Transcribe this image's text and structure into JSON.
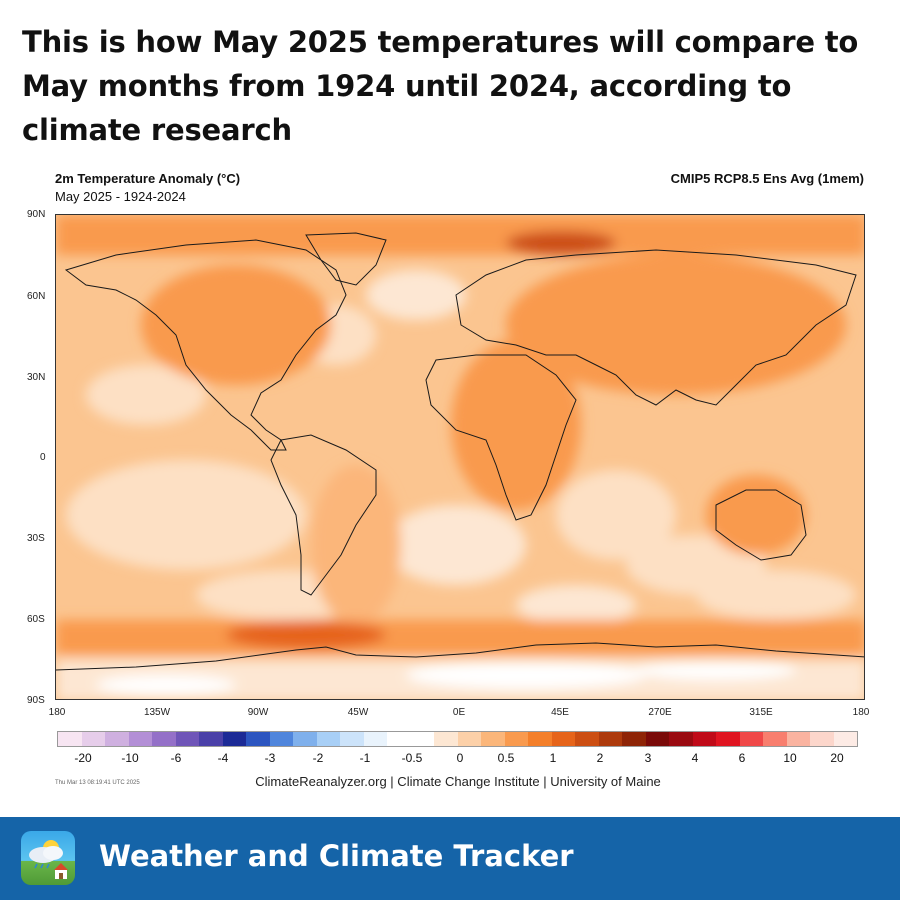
{
  "headline": "This is how May 2025 temperatures will compare to May months from 1924 until 2024, according to climate research",
  "map": {
    "title": "2m Temperature Anomaly (°C)",
    "subtitle": "May 2025 - 1924-2024",
    "model": "CMIP5 RCP8.5 Ens Avg (1mem)",
    "lat_labels": [
      "90N",
      "60N",
      "30N",
      "0",
      "30S",
      "60S",
      "90S"
    ],
    "lon_labels": [
      "180",
      "135W",
      "90W",
      "45W",
      "0E",
      "45E",
      "270E",
      "315E",
      "180"
    ],
    "timestamp": "Thu Mar 13 08:19:41 UTC 2025",
    "credit": "ClimateReanalyzer.org | Climate Change Institute | University of Maine"
  },
  "colorbar": {
    "labels": [
      "-20",
      "-10",
      "-6",
      "-4",
      "-3",
      "-2",
      "-1",
      "-0.5",
      "0",
      "0.5",
      "1",
      "2",
      "3",
      "4",
      "6",
      "10",
      "20"
    ],
    "colors": [
      "#f7e5f2",
      "#e6cdea",
      "#cfb0e0",
      "#b38fd6",
      "#9470c8",
      "#6f55b8",
      "#4a40a8",
      "#1c2a96",
      "#2c55c0",
      "#4f85dc",
      "#7fb0ec",
      "#a8cff6",
      "#cce3fa",
      "#e9f3fc",
      "#ffffff",
      "#ffffff",
      "#fde7d3",
      "#fcd0a8",
      "#fbb67a",
      "#f99a4e",
      "#f47f2a",
      "#e6641a",
      "#cc4e12",
      "#ad3a0c",
      "#8e2406",
      "#7a0a08",
      "#9a0a10",
      "#c00a18",
      "#e01420",
      "#f04848",
      "#f87e6e",
      "#fab3a0",
      "#fcd6cb",
      "#fdebe5"
    ]
  },
  "app": {
    "name": "Weather and Climate Tracker",
    "icon": "weather-app-icon"
  }
}
